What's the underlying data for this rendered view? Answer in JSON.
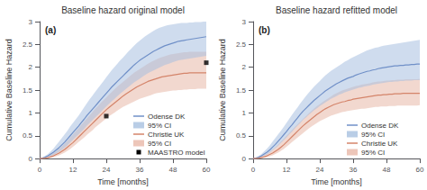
{
  "chart_data": [
    {
      "type": "line",
      "title": "Baseline hazard original model",
      "annotation": "(a)",
      "xlabel": "Time [months]",
      "ylabel": "Cumulative Baseline Hazard",
      "xlim": [
        0,
        60
      ],
      "ylim": [
        0,
        3
      ],
      "xticks": [
        0,
        12,
        24,
        36,
        48,
        60
      ],
      "yticks": [
        0,
        0.5,
        1,
        1.5,
        2,
        2.5,
        3
      ],
      "grid": false,
      "legend": "lower right",
      "x": [
        0,
        1,
        2,
        3,
        4,
        5,
        6,
        7,
        8,
        9,
        10,
        11,
        12,
        13,
        14,
        15,
        16,
        17,
        18,
        19,
        20,
        21,
        22,
        23,
        24,
        25,
        26,
        27,
        28,
        29,
        30,
        31,
        32,
        33,
        34,
        35,
        36,
        37,
        38,
        39,
        40,
        41,
        42,
        43,
        44,
        45,
        46,
        47,
        48,
        49,
        50,
        51,
        52,
        53,
        54,
        55,
        56,
        57,
        58,
        59,
        60
      ],
      "series": [
        {
          "name": "Odense DK",
          "type": "line",
          "color": "#7090c8",
          "values": [
            0,
            0.01,
            0.03,
            0.06,
            0.1,
            0.14,
            0.19,
            0.24,
            0.3,
            0.36,
            0.43,
            0.5,
            0.57,
            0.64,
            0.71,
            0.79,
            0.86,
            0.94,
            1.01,
            1.08,
            1.15,
            1.22,
            1.29,
            1.36,
            1.43,
            1.5,
            1.57,
            1.63,
            1.69,
            1.75,
            1.81,
            1.87,
            1.93,
            1.99,
            2.05,
            2.1,
            2.15,
            2.19,
            2.23,
            2.27,
            2.31,
            2.35,
            2.38,
            2.41,
            2.44,
            2.47,
            2.49,
            2.51,
            2.53,
            2.55,
            2.57,
            2.58,
            2.59,
            2.6,
            2.61,
            2.62,
            2.63,
            2.64,
            2.65,
            2.66,
            2.67
          ]
        },
        {
          "name": "95% CI",
          "type": "band",
          "color": "#a8c0e0",
          "lower": [
            0,
            0.005,
            0.01,
            0.03,
            0.05,
            0.08,
            0.11,
            0.15,
            0.19,
            0.24,
            0.29,
            0.35,
            0.41,
            0.47,
            0.53,
            0.59,
            0.65,
            0.72,
            0.78,
            0.84,
            0.9,
            0.96,
            1.02,
            1.08,
            1.14,
            1.2,
            1.26,
            1.31,
            1.37,
            1.42,
            1.47,
            1.52,
            1.57,
            1.62,
            1.67,
            1.71,
            1.75,
            1.79,
            1.83,
            1.87,
            1.9,
            1.93,
            1.96,
            1.99,
            2.02,
            2.05,
            2.07,
            2.09,
            2.11,
            2.13,
            2.15,
            2.16,
            2.17,
            2.18,
            2.19,
            2.2,
            2.21,
            2.22,
            2.23,
            2.24,
            2.25
          ],
          "upper": [
            0,
            0.02,
            0.06,
            0.1,
            0.16,
            0.22,
            0.3,
            0.37,
            0.45,
            0.53,
            0.61,
            0.7,
            0.78,
            0.86,
            0.94,
            1.03,
            1.12,
            1.21,
            1.3,
            1.38,
            1.46,
            1.54,
            1.62,
            1.7,
            1.78,
            1.86,
            1.94,
            2.01,
            2.08,
            2.15,
            2.21,
            2.28,
            2.35,
            2.41,
            2.47,
            2.53,
            2.58,
            2.63,
            2.68,
            2.72,
            2.76,
            2.8,
            2.83,
            2.86,
            2.88,
            2.9,
            2.92,
            2.93,
            2.94,
            2.95,
            2.96,
            2.97,
            2.97,
            2.97,
            2.98,
            2.98,
            2.99,
            2.99,
            2.99,
            3.0,
            3.0
          ]
        },
        {
          "name": "Christie UK",
          "type": "line",
          "color": "#d4846a",
          "values": [
            0,
            0.005,
            0.01,
            0.02,
            0.04,
            0.06,
            0.09,
            0.12,
            0.16,
            0.2,
            0.25,
            0.3,
            0.35,
            0.41,
            0.47,
            0.53,
            0.59,
            0.65,
            0.71,
            0.77,
            0.83,
            0.89,
            0.95,
            1.01,
            1.07,
            1.12,
            1.17,
            1.22,
            1.27,
            1.32,
            1.37,
            1.41,
            1.45,
            1.49,
            1.53,
            1.57,
            1.6,
            1.63,
            1.66,
            1.69,
            1.71,
            1.73,
            1.75,
            1.77,
            1.79,
            1.8,
            1.81,
            1.82,
            1.83,
            1.84,
            1.85,
            1.86,
            1.87,
            1.87,
            1.88,
            1.88,
            1.88,
            1.88,
            1.88,
            1.88,
            1.88
          ]
        },
        {
          "name": "95% CI",
          "type": "band",
          "color": "#e8b8a8",
          "lower": [
            0,
            0.002,
            0.005,
            0.01,
            0.02,
            0.03,
            0.05,
            0.07,
            0.1,
            0.13,
            0.17,
            0.21,
            0.26,
            0.31,
            0.36,
            0.41,
            0.46,
            0.52,
            0.57,
            0.62,
            0.68,
            0.73,
            0.78,
            0.83,
            0.88,
            0.93,
            0.97,
            1.01,
            1.05,
            1.09,
            1.13,
            1.16,
            1.19,
            1.22,
            1.25,
            1.28,
            1.31,
            1.33,
            1.35,
            1.37,
            1.39,
            1.41,
            1.43,
            1.44,
            1.45,
            1.46,
            1.47,
            1.48,
            1.49,
            1.49,
            1.5,
            1.5,
            1.51,
            1.51,
            1.52,
            1.52,
            1.52,
            1.53,
            1.53,
            1.53,
            1.53
          ],
          "upper": [
            0,
            0.01,
            0.03,
            0.06,
            0.09,
            0.12,
            0.16,
            0.21,
            0.27,
            0.33,
            0.39,
            0.46,
            0.53,
            0.6,
            0.67,
            0.74,
            0.81,
            0.88,
            0.95,
            1.02,
            1.09,
            1.15,
            1.22,
            1.28,
            1.34,
            1.4,
            1.46,
            1.52,
            1.58,
            1.63,
            1.68,
            1.73,
            1.78,
            1.83,
            1.88,
            1.92,
            1.96,
            2.0,
            2.04,
            2.08,
            2.11,
            2.14,
            2.17,
            2.2,
            2.22,
            2.24,
            2.26,
            2.28,
            2.29,
            2.3,
            2.31,
            2.32,
            2.33,
            2.33,
            2.34,
            2.34,
            2.34,
            2.34,
            2.34,
            2.34,
            2.34
          ]
        },
        {
          "name": "MAASTRO model",
          "type": "scatter",
          "marker": "square",
          "color": "#000000",
          "x": [
            24,
            60
          ],
          "values": [
            0.93,
            2.1
          ]
        }
      ]
    },
    {
      "type": "line",
      "title": "Baseline hazard refitted model",
      "annotation": "(b)",
      "xlabel": "Time [months]",
      "ylabel": "Cumulative Baseline Hazard",
      "xlim": [
        0,
        60
      ],
      "ylim": [
        0,
        3
      ],
      "xticks": [
        0,
        12,
        24,
        36,
        48,
        60
      ],
      "yticks": [
        0,
        0.5,
        1,
        1.5,
        2,
        2.5,
        3
      ],
      "grid": false,
      "legend": "lower right",
      "x": [
        0,
        1,
        2,
        3,
        4,
        5,
        6,
        7,
        8,
        9,
        10,
        11,
        12,
        13,
        14,
        15,
        16,
        17,
        18,
        19,
        20,
        21,
        22,
        23,
        24,
        25,
        26,
        27,
        28,
        29,
        30,
        31,
        32,
        33,
        34,
        35,
        36,
        37,
        38,
        39,
        40,
        41,
        42,
        43,
        44,
        45,
        46,
        47,
        48,
        49,
        50,
        51,
        52,
        53,
        54,
        55,
        56,
        57,
        58,
        59,
        60
      ],
      "series": [
        {
          "name": "Odense DK",
          "type": "line",
          "color": "#7090c8",
          "values": [
            0,
            0.01,
            0.03,
            0.06,
            0.1,
            0.14,
            0.19,
            0.25,
            0.31,
            0.38,
            0.45,
            0.52,
            0.59,
            0.67,
            0.74,
            0.82,
            0.89,
            0.97,
            1.04,
            1.1,
            1.16,
            1.22,
            1.28,
            1.33,
            1.38,
            1.43,
            1.48,
            1.52,
            1.56,
            1.6,
            1.64,
            1.67,
            1.7,
            1.73,
            1.76,
            1.78,
            1.8,
            1.83,
            1.85,
            1.87,
            1.89,
            1.91,
            1.92,
            1.94,
            1.95,
            1.97,
            1.98,
            1.99,
            2.0,
            2.01,
            2.02,
            2.03,
            2.03,
            2.04,
            2.04,
            2.05,
            2.05,
            2.06,
            2.06,
            2.07,
            2.07
          ]
        },
        {
          "name": "95% CI",
          "type": "band",
          "color": "#a8c0e0",
          "lower": [
            0,
            0.005,
            0.015,
            0.03,
            0.06,
            0.09,
            0.13,
            0.18,
            0.23,
            0.28,
            0.34,
            0.4,
            0.46,
            0.53,
            0.59,
            0.66,
            0.72,
            0.78,
            0.85,
            0.9,
            0.96,
            1.01,
            1.06,
            1.1,
            1.15,
            1.19,
            1.23,
            1.27,
            1.31,
            1.34,
            1.37,
            1.4,
            1.42,
            1.45,
            1.47,
            1.49,
            1.51,
            1.53,
            1.55,
            1.56,
            1.58,
            1.59,
            1.6,
            1.62,
            1.63,
            1.64,
            1.65,
            1.66,
            1.67,
            1.68,
            1.68,
            1.69,
            1.69,
            1.7,
            1.7,
            1.71,
            1.71,
            1.71,
            1.72,
            1.72,
            1.72
          ],
          "upper": [
            0,
            0.02,
            0.055,
            0.1,
            0.16,
            0.22,
            0.29,
            0.37,
            0.45,
            0.53,
            0.61,
            0.69,
            0.78,
            0.87,
            0.96,
            1.04,
            1.12,
            1.21,
            1.29,
            1.37,
            1.44,
            1.51,
            1.58,
            1.64,
            1.7,
            1.76,
            1.82,
            1.87,
            1.92,
            1.96,
            2.0,
            2.04,
            2.08,
            2.12,
            2.15,
            2.19,
            2.22,
            2.25,
            2.28,
            2.31,
            2.34,
            2.37,
            2.39,
            2.41,
            2.43,
            2.44,
            2.46,
            2.47,
            2.48,
            2.49,
            2.5,
            2.51,
            2.52,
            2.53,
            2.54,
            2.55,
            2.56,
            2.57,
            2.58,
            2.59,
            2.6
          ]
        },
        {
          "name": "Christie UK",
          "type": "line",
          "color": "#d4846a",
          "values": [
            0,
            0.005,
            0.01,
            0.025,
            0.04,
            0.06,
            0.09,
            0.12,
            0.16,
            0.2,
            0.25,
            0.3,
            0.36,
            0.42,
            0.48,
            0.54,
            0.6,
            0.66,
            0.72,
            0.77,
            0.82,
            0.87,
            0.92,
            0.97,
            1.01,
            1.05,
            1.09,
            1.12,
            1.15,
            1.18,
            1.2,
            1.22,
            1.24,
            1.25,
            1.27,
            1.28,
            1.3,
            1.31,
            1.32,
            1.33,
            1.34,
            1.35,
            1.36,
            1.37,
            1.38,
            1.39,
            1.39,
            1.4,
            1.4,
            1.41,
            1.41,
            1.42,
            1.42,
            1.42,
            1.43,
            1.43,
            1.43,
            1.43,
            1.43,
            1.43,
            1.43
          ]
        },
        {
          "name": "95% CI",
          "type": "band",
          "color": "#e8b8a8",
          "lower": [
            0,
            0.002,
            0.005,
            0.01,
            0.02,
            0.03,
            0.05,
            0.07,
            0.1,
            0.13,
            0.17,
            0.21,
            0.26,
            0.31,
            0.36,
            0.41,
            0.46,
            0.51,
            0.56,
            0.61,
            0.66,
            0.7,
            0.74,
            0.78,
            0.82,
            0.85,
            0.88,
            0.91,
            0.94,
            0.96,
            0.98,
            1.0,
            1.02,
            1.03,
            1.04,
            1.05,
            1.06,
            1.07,
            1.08,
            1.09,
            1.09,
            1.1,
            1.11,
            1.12,
            1.13,
            1.13,
            1.14,
            1.14,
            1.14,
            1.15,
            1.15,
            1.15,
            1.16,
            1.16,
            1.16,
            1.16,
            1.16,
            1.16,
            1.16,
            1.16,
            1.17
          ],
          "upper": [
            0,
            0.01,
            0.025,
            0.05,
            0.08,
            0.11,
            0.15,
            0.2,
            0.25,
            0.31,
            0.37,
            0.43,
            0.5,
            0.56,
            0.63,
            0.69,
            0.75,
            0.81,
            0.87,
            0.93,
            0.99,
            1.04,
            1.1,
            1.15,
            1.19,
            1.24,
            1.28,
            1.32,
            1.36,
            1.4,
            1.43,
            1.46,
            1.49,
            1.51,
            1.53,
            1.55,
            1.57,
            1.59,
            1.6,
            1.62,
            1.63,
            1.64,
            1.65,
            1.67,
            1.68,
            1.69,
            1.69,
            1.7,
            1.71,
            1.71,
            1.72,
            1.72,
            1.73,
            1.73,
            1.73,
            1.74,
            1.74,
            1.74,
            1.74,
            1.74,
            1.75
          ]
        }
      ]
    }
  ]
}
